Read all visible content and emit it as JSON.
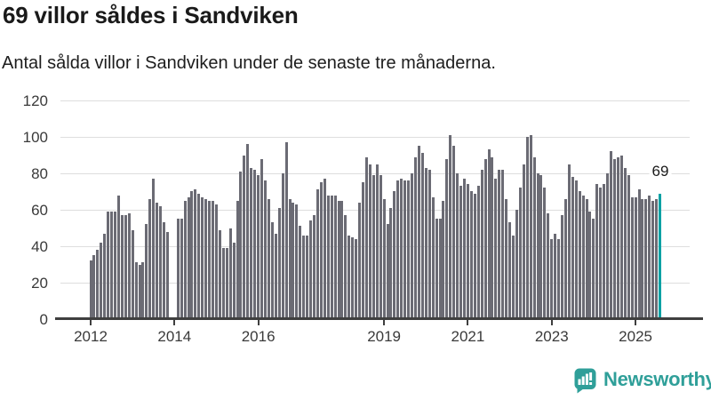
{
  "header": {
    "title": "69 villor såldes i Sandviken",
    "subtitle": "Antal sålda villor i Sandviken under de senaste tre månaderna."
  },
  "chart_data": {
    "type": "bar",
    "title": "69 villor såldes i Sandviken",
    "subtitle": "Antal sålda villor i Sandviken under de senaste tre månaderna.",
    "unit": "sålda villor (rullande tre månader)",
    "frequency": "monthly",
    "x_start_month": "2012-01",
    "x_tick_labels": [
      "2012",
      "2014",
      "2016",
      "2019",
      "2021",
      "2023",
      "2025"
    ],
    "x_tick_indices": [
      0,
      24,
      48,
      84,
      108,
      132,
      156
    ],
    "y_ticks": [
      0,
      20,
      40,
      60,
      80,
      100,
      120
    ],
    "ylim": [
      0,
      120
    ],
    "grid": true,
    "legend": false,
    "values": [
      32,
      35,
      38,
      42,
      47,
      59,
      59,
      59,
      68,
      57,
      57,
      58,
      49,
      31,
      30,
      31,
      52,
      66,
      77,
      64,
      62,
      53,
      48,
      null,
      null,
      55,
      55,
      65,
      67,
      70,
      71,
      69,
      67,
      66,
      65,
      65,
      63,
      49,
      39,
      39,
      50,
      42,
      65,
      81,
      90,
      96,
      83,
      82,
      79,
      88,
      76,
      66,
      53,
      47,
      61,
      80,
      97,
      66,
      64,
      63,
      51,
      46,
      46,
      54,
      57,
      71,
      75,
      77,
      68,
      68,
      68,
      65,
      65,
      57,
      46,
      45,
      44,
      64,
      75,
      89,
      85,
      79,
      85,
      79,
      66,
      52,
      61,
      70,
      76,
      77,
      76,
      76,
      80,
      89,
      95,
      91,
      83,
      82,
      67,
      55,
      55,
      65,
      88,
      101,
      95,
      80,
      73,
      77,
      74,
      70,
      69,
      73,
      82,
      88,
      93,
      89,
      77,
      82,
      82,
      66,
      53,
      46,
      60,
      72,
      85,
      100,
      101,
      89,
      80,
      79,
      72,
      58,
      44,
      47,
      44,
      57,
      66,
      85,
      78,
      76,
      70,
      68,
      66,
      59,
      55,
      74,
      72,
      74,
      80,
      92,
      88,
      89,
      90,
      83,
      79,
      67,
      67,
      71,
      66,
      66,
      68,
      65,
      66,
      69
    ],
    "highlight_last": true,
    "annotation": {
      "text": "69",
      "value": 69
    },
    "colors": {
      "bar": "#6B6B74",
      "highlight": "#00A1A4",
      "grid": "#DEDEDE",
      "axis": "#3F3F3F",
      "tick_label": "#3A3A3A",
      "title": "#1A1A1A",
      "brand": "#2F9F99"
    }
  },
  "footer": {
    "brand": "Newsworthy"
  }
}
